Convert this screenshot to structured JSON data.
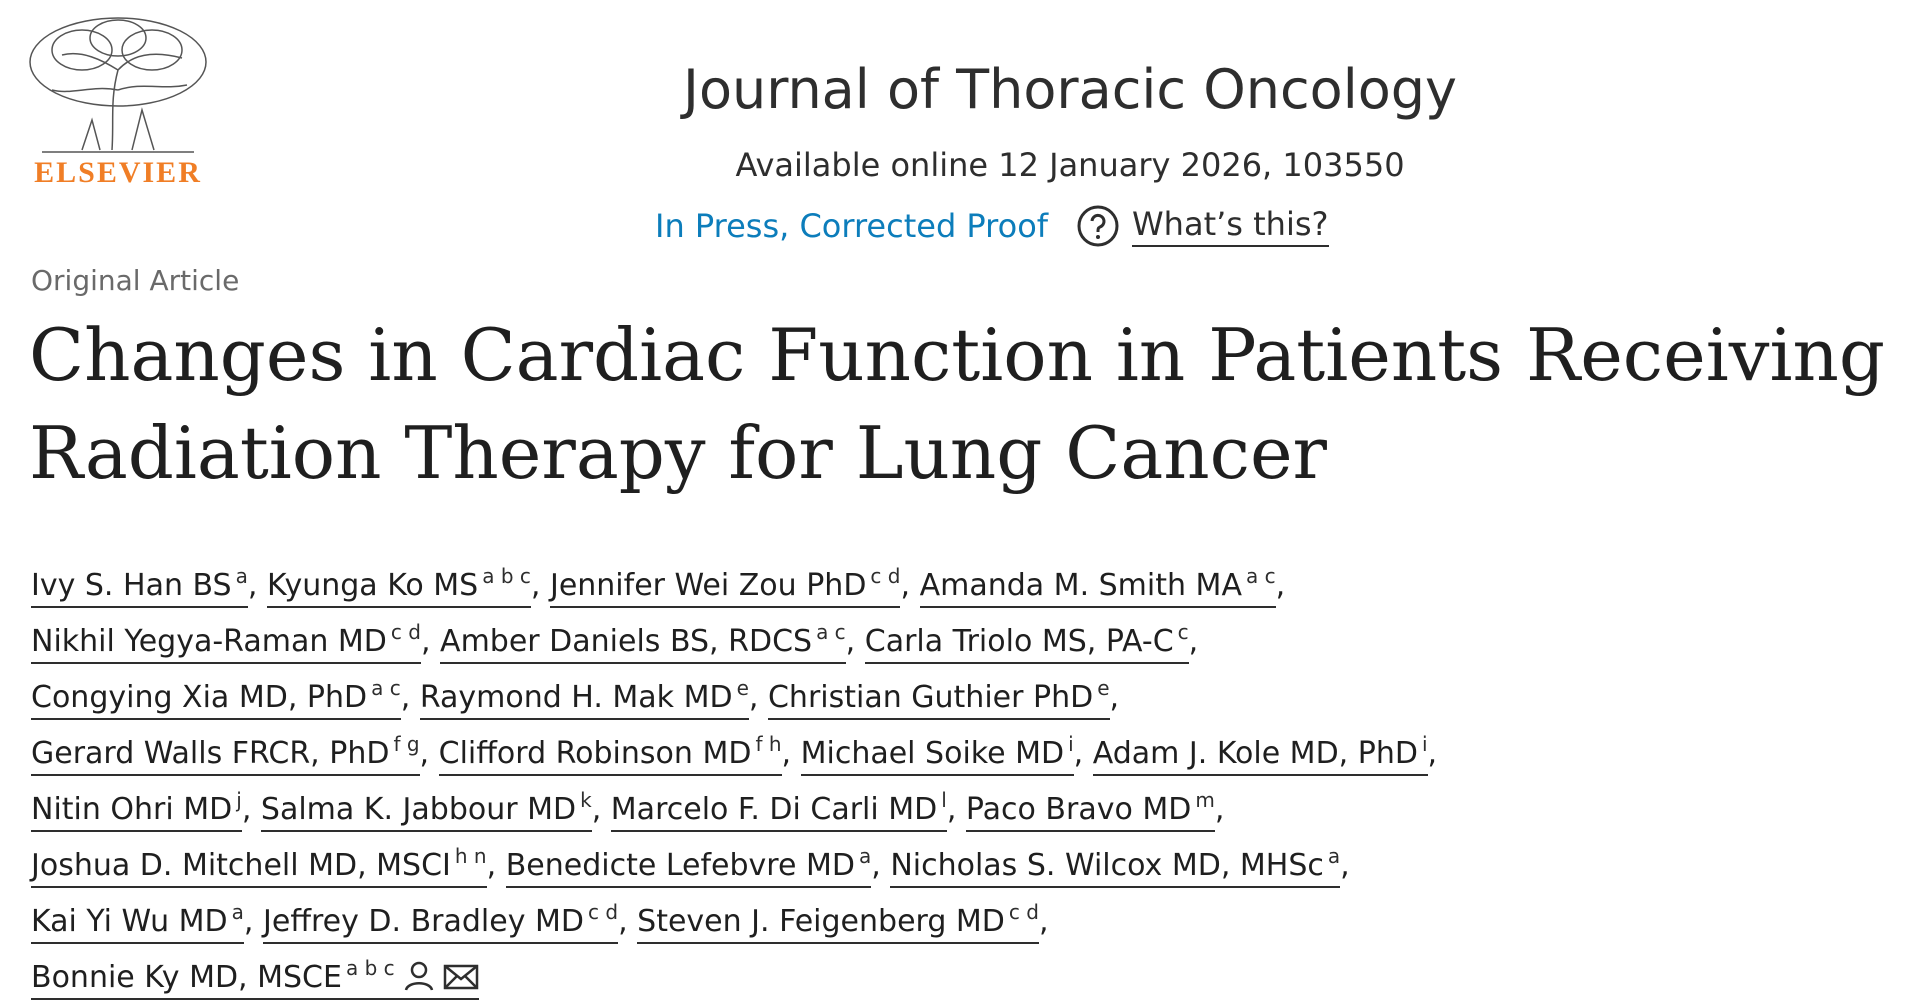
{
  "header": {
    "publisher": "ELSEVIER",
    "journal": "Journal of Thoracic Oncology",
    "availability": "Available online 12 January 2026, 103550",
    "status": "In Press, Corrected Proof",
    "help": "What’s this?"
  },
  "article": {
    "type": "Original Article",
    "title": "Changes in Cardiac Function in Patients Receiving Radiation Therapy for Lung Cancer",
    "author_lines": [
      [
        {
          "name": "Ivy S. Han BS",
          "affiliations": "a"
        },
        {
          "name": "Kyunga Ko MS",
          "affiliations": "a b c"
        },
        {
          "name": "Jennifer Wei Zou PhD",
          "affiliations": "c d"
        },
        {
          "name": "Amanda M. Smith MA",
          "affiliations": "a c"
        }
      ],
      [
        {
          "name": "Nikhil Yegya-Raman MD",
          "affiliations": "c d"
        },
        {
          "name": "Amber Daniels BS, RDCS",
          "affiliations": "a c"
        },
        {
          "name": "Carla Triolo MS, PA-C",
          "affiliations": "c"
        }
      ],
      [
        {
          "name": "Congying Xia MD, PhD",
          "affiliations": "a c"
        },
        {
          "name": "Raymond H. Mak MD",
          "affiliations": "e"
        },
        {
          "name": "Christian Guthier PhD",
          "affiliations": "e"
        }
      ],
      [
        {
          "name": "Gerard Walls FRCR, PhD",
          "affiliations": "f g"
        },
        {
          "name": "Clifford Robinson MD",
          "affiliations": "f h"
        },
        {
          "name": "Michael Soike MD",
          "affiliations": "i"
        },
        {
          "name": "Adam J. Kole MD, PhD",
          "affiliations": "i"
        }
      ],
      [
        {
          "name": "Nitin Ohri MD",
          "affiliations": "j"
        },
        {
          "name": "Salma K. Jabbour MD",
          "affiliations": "k"
        },
        {
          "name": "Marcelo F. Di Carli MD",
          "affiliations": "l"
        },
        {
          "name": "Paco Bravo MD",
          "affiliations": "m"
        }
      ],
      [
        {
          "name": "Joshua D. Mitchell MD, MSCI",
          "affiliations": "h n"
        },
        {
          "name": "Benedicte Lefebvre MD",
          "affiliations": "a"
        },
        {
          "name": "Nicholas S. Wilcox MD, MHSc",
          "affiliations": "a"
        }
      ],
      [
        {
          "name": "Kai Yi Wu MD",
          "affiliations": "a"
        },
        {
          "name": "Jeffrey D. Bradley MD",
          "affiliations": "c d"
        },
        {
          "name": "Steven J. Feigenberg MD",
          "affiliations": "c d"
        }
      ],
      [
        {
          "name": "Bonnie Ky MD, MSCE",
          "affiliations": "a b c"
        }
      ]
    ]
  }
}
